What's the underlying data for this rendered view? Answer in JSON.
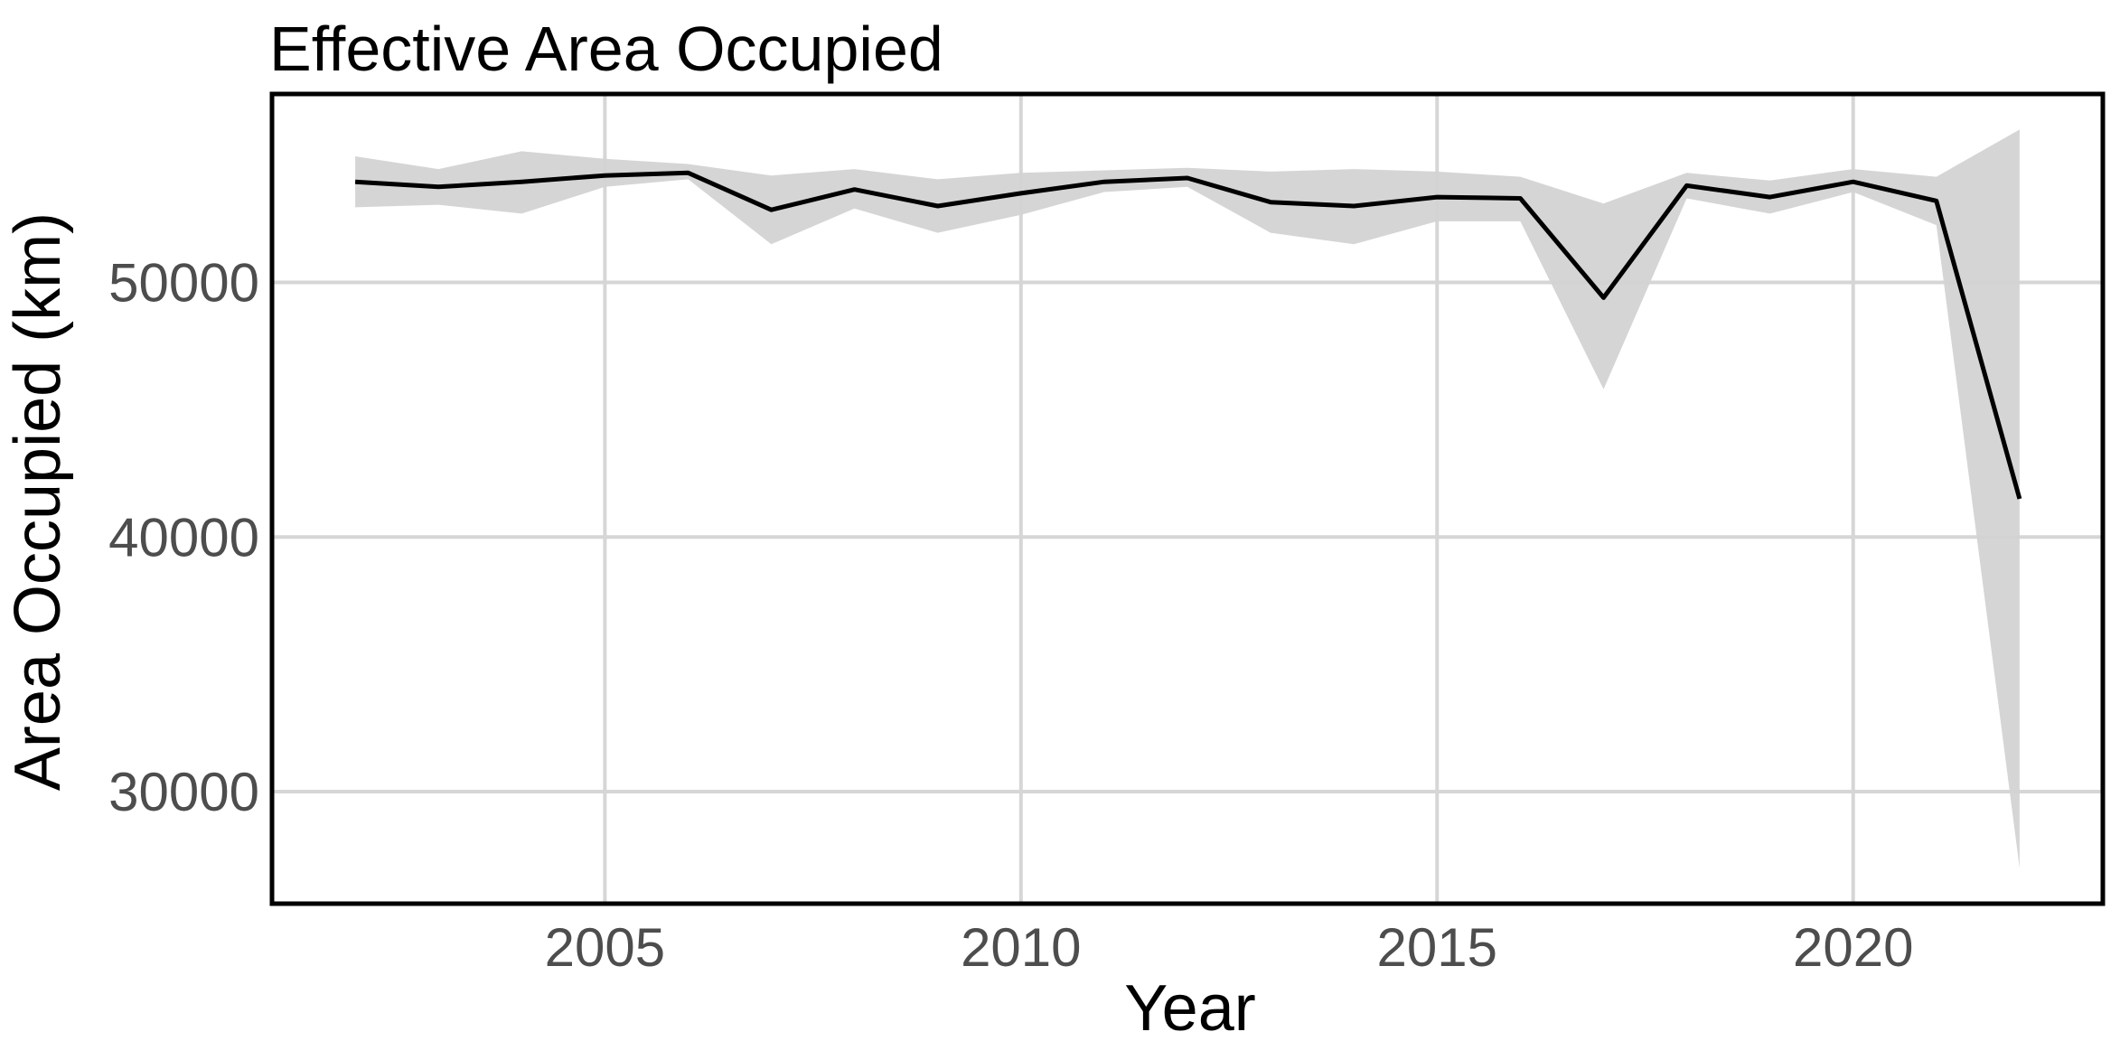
{
  "chart_data": {
    "type": "line",
    "title": "Effective Area Occupied",
    "xlabel": "Year",
    "ylabel": "Area Occupied (km)",
    "xlim": [
      2001,
      2023
    ],
    "ylim": [
      25600,
      57400
    ],
    "x_ticks": [
      2005,
      2010,
      2015,
      2020
    ],
    "y_ticks": [
      30000,
      40000,
      50000
    ],
    "x_tick_labels": [
      "2005",
      "2010",
      "2015",
      "2020"
    ],
    "y_tick_labels": [
      "30000",
      "40000",
      "50000"
    ],
    "grid": true,
    "legend": "none",
    "series": [
      {
        "x": [
          2002,
          2003,
          2004,
          2005,
          2006,
          2007,
          2008,
          2009,
          2010,
          2011,
          2012,
          2013,
          2014,
          2015,
          2016,
          2017,
          2018,
          2019,
          2020,
          2021,
          2022
        ],
        "values": [
          53950,
          53750,
          53950,
          54200,
          54300,
          52850,
          53650,
          53000,
          53500,
          53950,
          54100,
          53150,
          53000,
          53350,
          53300,
          49400,
          53800,
          53350,
          53950,
          53200,
          41500
        ],
        "lower": [
          52950,
          53050,
          52700,
          53750,
          54050,
          51500,
          52900,
          51950,
          52650,
          53550,
          53750,
          51950,
          51500,
          52400,
          52400,
          45800,
          53300,
          52700,
          53550,
          52250,
          27000
        ],
        "upper": [
          54950,
          54450,
          55150,
          54850,
          54650,
          54200,
          54450,
          54050,
          54300,
          54400,
          54500,
          54350,
          54450,
          54350,
          54150,
          53100,
          54300,
          54000,
          54450,
          54150,
          56000
        ]
      }
    ],
    "colors": {
      "line": "#000000",
      "ribbon": "#d3d3d3",
      "grid": "#d6d6d6",
      "panel_border": "#000000",
      "tick_text": "#4d4d4d"
    }
  }
}
